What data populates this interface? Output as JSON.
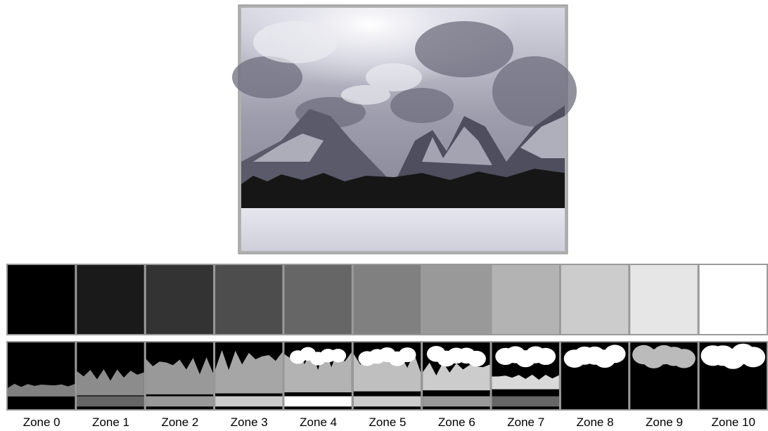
{
  "zones": [
    {
      "label": "Zone 0",
      "color": "#000000"
    },
    {
      "label": "Zone 1",
      "color": "#1a1a1a"
    },
    {
      "label": "Zone 2",
      "color": "#333333"
    },
    {
      "label": "Zone 3",
      "color": "#4d4d4d"
    },
    {
      "label": "Zone 4",
      "color": "#666666"
    },
    {
      "label": "Zone 5",
      "color": "#808080"
    },
    {
      "label": "Zone 6",
      "color": "#999999"
    },
    {
      "label": "Zone 7",
      "color": "#b3b3b3"
    },
    {
      "label": "Zone 8",
      "color": "#cccccc"
    },
    {
      "label": "Zone 9",
      "color": "#e6e6e6"
    },
    {
      "label": "Zone 10",
      "color": "#ffffff"
    }
  ]
}
